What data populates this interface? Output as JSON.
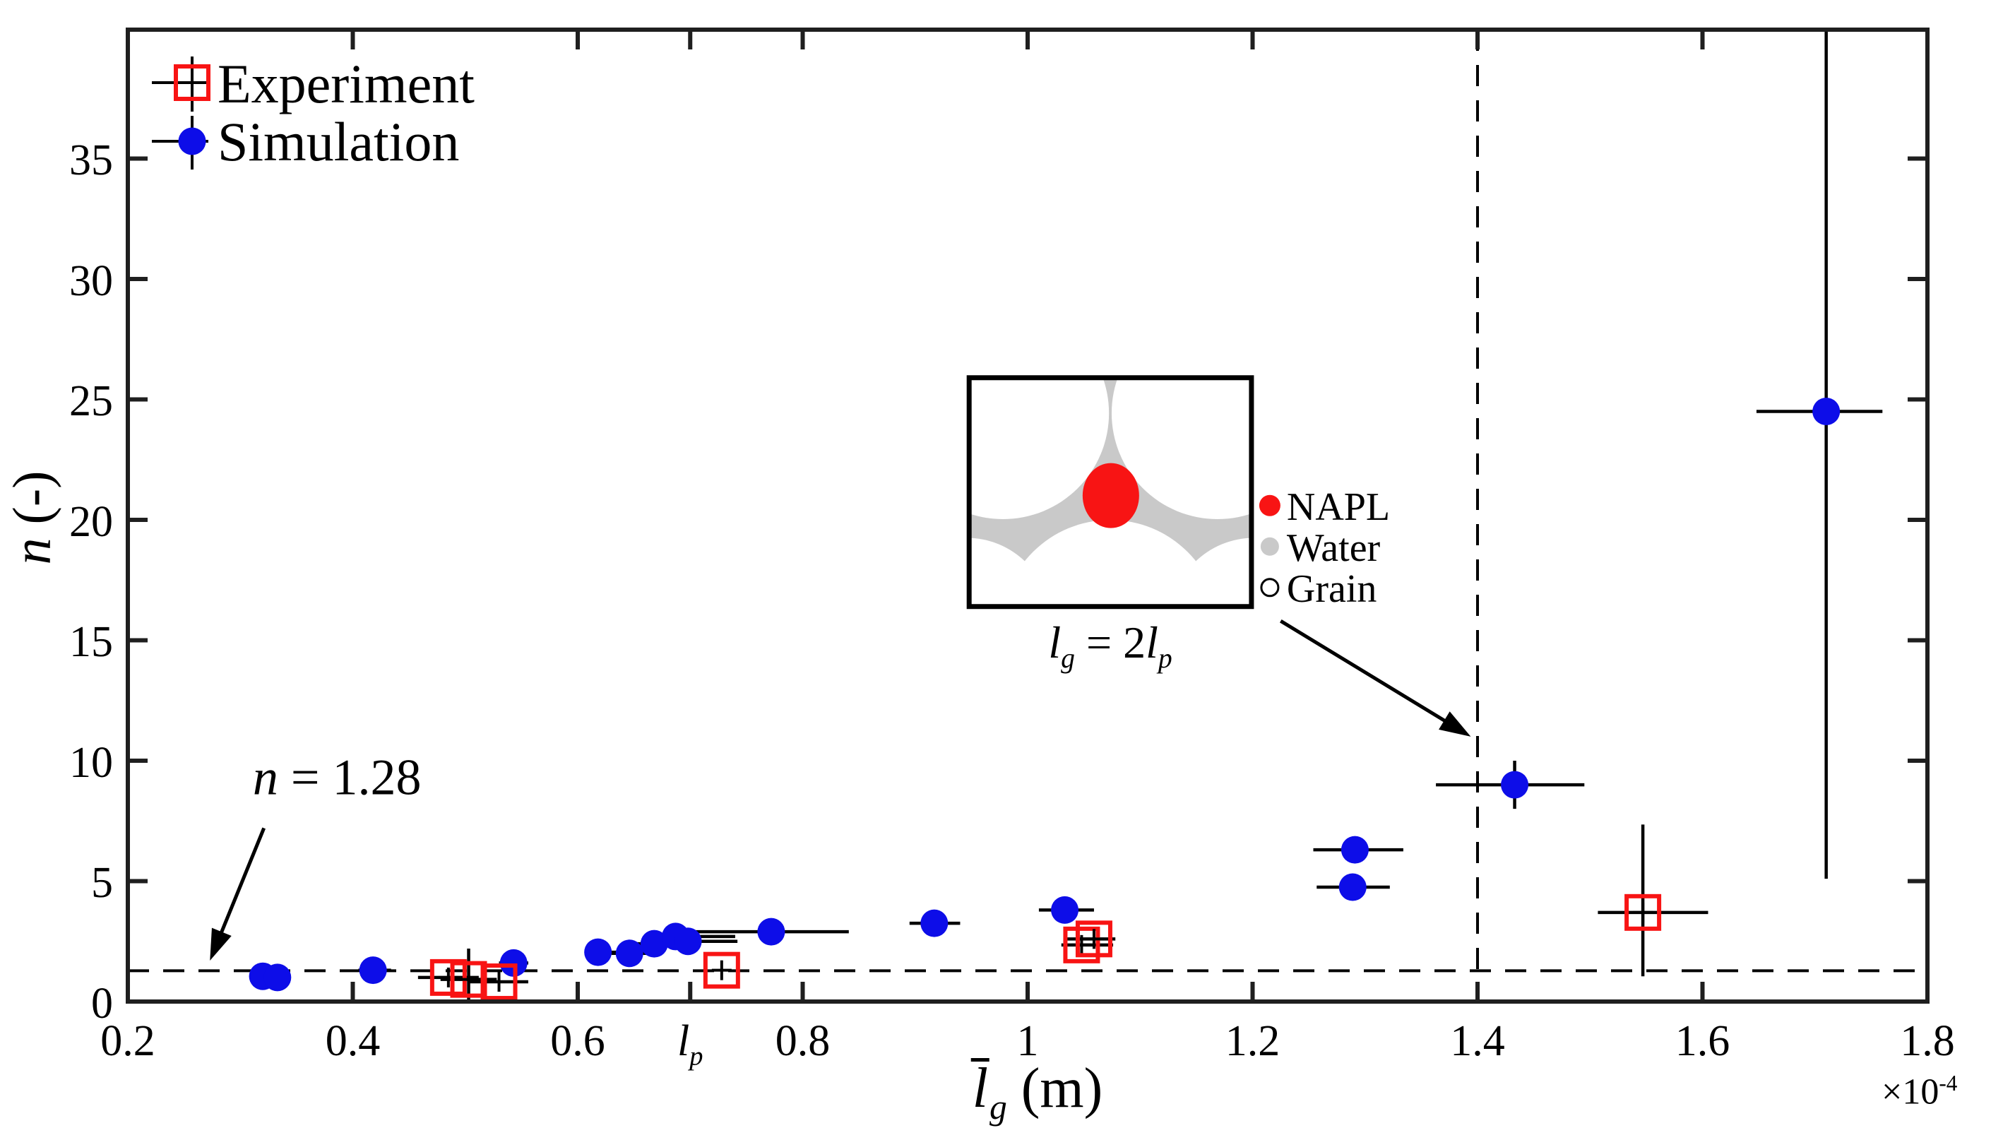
{
  "figure": {
    "legend": {
      "experiment_label": "Experiment",
      "simulation_label": "Simulation"
    },
    "annotations": {
      "n_line_var": "n",
      "n_line_rest": " = 1.28"
    },
    "axes": {
      "ylabel_var": "n",
      "ylabel_unit": " (-)",
      "xlabel_var": "l",
      "xlabel_sub": "g",
      "xlabel_unit": " (m)",
      "x_exponent_base": "×10",
      "x_exponent_power": "-4"
    },
    "inset": {
      "caption": {
        "var1": "l",
        "sub1": "g",
        "equals": " = 2",
        "var2": "l",
        "sub2": "p"
      },
      "legend": [
        {
          "label": "NAPL",
          "color": "#F81414",
          "fill": true,
          "marker": "napl-dot"
        },
        {
          "label": "Water",
          "color": "#C9C9C9",
          "fill": true,
          "marker": "water-dot"
        },
        {
          "label": "Grain",
          "color": "#FFFFFF",
          "fill": false,
          "marker": "grain-circle"
        }
      ]
    }
  },
  "chart_data": {
    "type": "scatter",
    "title": "",
    "xlabel": "l̄g (m)",
    "ylabel": "n (-)",
    "x_scale_factor": "×10^-4",
    "xlim": [
      0.2,
      1.8
    ],
    "ylim": [
      0,
      40.35
    ],
    "grid": false,
    "legend_position": "top-left",
    "xticks": [
      {
        "v": 0.2,
        "label": "0.2"
      },
      {
        "v": 0.4,
        "label": "0.4"
      },
      {
        "v": 0.6,
        "label": "0.6"
      },
      {
        "v": 0.7,
        "math_var": "l",
        "math_sub": "p"
      },
      {
        "v": 0.8,
        "label": "0.8"
      },
      {
        "v": 1.0,
        "label": "1"
      },
      {
        "v": 1.2,
        "label": "1.2"
      },
      {
        "v": 1.4,
        "label": "1.4"
      },
      {
        "v": 1.6,
        "label": "1.6"
      },
      {
        "v": 1.8,
        "label": "1.8"
      }
    ],
    "yticks": [
      0,
      5,
      10,
      15,
      20,
      25,
      30,
      35
    ],
    "ref_lines": [
      {
        "orient": "h",
        "value": 1.28,
        "style": "dashed"
      },
      {
        "orient": "v",
        "value": 1.4,
        "style": "dashed"
      }
    ],
    "series": [
      {
        "name": "Simulation",
        "marker": "filled-circle",
        "color": "#0D0DE8",
        "points": [
          {
            "x": 0.32,
            "y": 1.05,
            "xerr": [
              0.308,
              0.332
            ]
          },
          {
            "x": 0.333,
            "y": 1.0,
            "xerr": [
              0.321,
              0.345
            ]
          },
          {
            "x": 0.418,
            "y": 1.3,
            "xerr": [
              0.405,
              0.434
            ]
          },
          {
            "x": 0.543,
            "y": 1.6,
            "xerr": [
              0.53,
              0.556
            ]
          },
          {
            "x": 0.618,
            "y": 2.05,
            "xerr": [
              0.606,
              0.634
            ]
          },
          {
            "x": 0.646,
            "y": 2.0,
            "xerr": [
              0.63,
              0.662
            ]
          },
          {
            "x": 0.668,
            "y": 2.4,
            "xerr": [
              0.652,
              0.684
            ]
          },
          {
            "x": 0.687,
            "y": 2.7,
            "xerr": [
              0.664,
              0.74
            ]
          },
          {
            "x": 0.698,
            "y": 2.5,
            "xerr": [
              0.676,
              0.742
            ]
          },
          {
            "x": 0.772,
            "y": 2.9,
            "xerr": [
              0.704,
              0.841
            ]
          },
          {
            "x": 0.917,
            "y": 3.25,
            "xerr": [
              0.895,
              0.94
            ]
          },
          {
            "x": 1.033,
            "y": 3.8,
            "xerr": [
              1.01,
              1.059
            ]
          },
          {
            "x": 1.291,
            "y": 6.3,
            "xerr": [
              1.254,
              1.334
            ]
          },
          {
            "x": 1.289,
            "y": 4.75,
            "xerr": [
              1.257,
              1.322
            ]
          },
          {
            "x": 1.433,
            "y": 9.0,
            "xerr": [
              1.363,
              1.495
            ],
            "yerr": [
              8.0,
              10.0
            ]
          },
          {
            "x": 1.71,
            "y": 24.5,
            "xerr": [
              1.648,
              1.76
            ],
            "yerr": [
              5.1,
              40.3
            ]
          }
        ]
      },
      {
        "name": "Experiment",
        "marker": "open-square-plus",
        "color": "#F81414",
        "points": [
          {
            "x": 0.485,
            "y": 1.0,
            "xerr": [
              0.458,
              0.512
            ]
          },
          {
            "x": 0.503,
            "y": 0.92,
            "xerr": [
              0.478,
              0.528
            ],
            "yerr": [
              0.0,
              2.2
            ]
          },
          {
            "x": 0.53,
            "y": 0.82,
            "xerr": [
              0.503,
              0.556
            ]
          },
          {
            "x": 0.728,
            "y": 1.3
          },
          {
            "x": 1.048,
            "y": 2.35,
            "xerr": [
              1.03,
              1.076
            ]
          },
          {
            "x": 1.059,
            "y": 2.6,
            "xerr": [
              1.032,
              1.078
            ]
          },
          {
            "x": 1.547,
            "y": 3.7,
            "xerr": [
              1.507,
              1.605
            ],
            "yerr": [
              1.05,
              7.35
            ]
          }
        ]
      }
    ],
    "annotations": [
      {
        "id": "n-128",
        "text": "n = 1.28",
        "text_at": {
          "x": 0.386,
          "y": 9.3
        },
        "arrow_from": {
          "x": 0.321,
          "y": 7.2
        },
        "arrow_to": {
          "x": 0.273,
          "y": 1.7
        }
      },
      {
        "id": "inset-pointer",
        "arrow_from": {
          "x": 1.225,
          "y": 15.8
        },
        "arrow_to": {
          "x": 1.394,
          "y": 11.0
        }
      }
    ],
    "inset_box": {
      "x0": 0.948,
      "x1": 1.199,
      "y0": 16.4,
      "y1": 25.9
    }
  }
}
